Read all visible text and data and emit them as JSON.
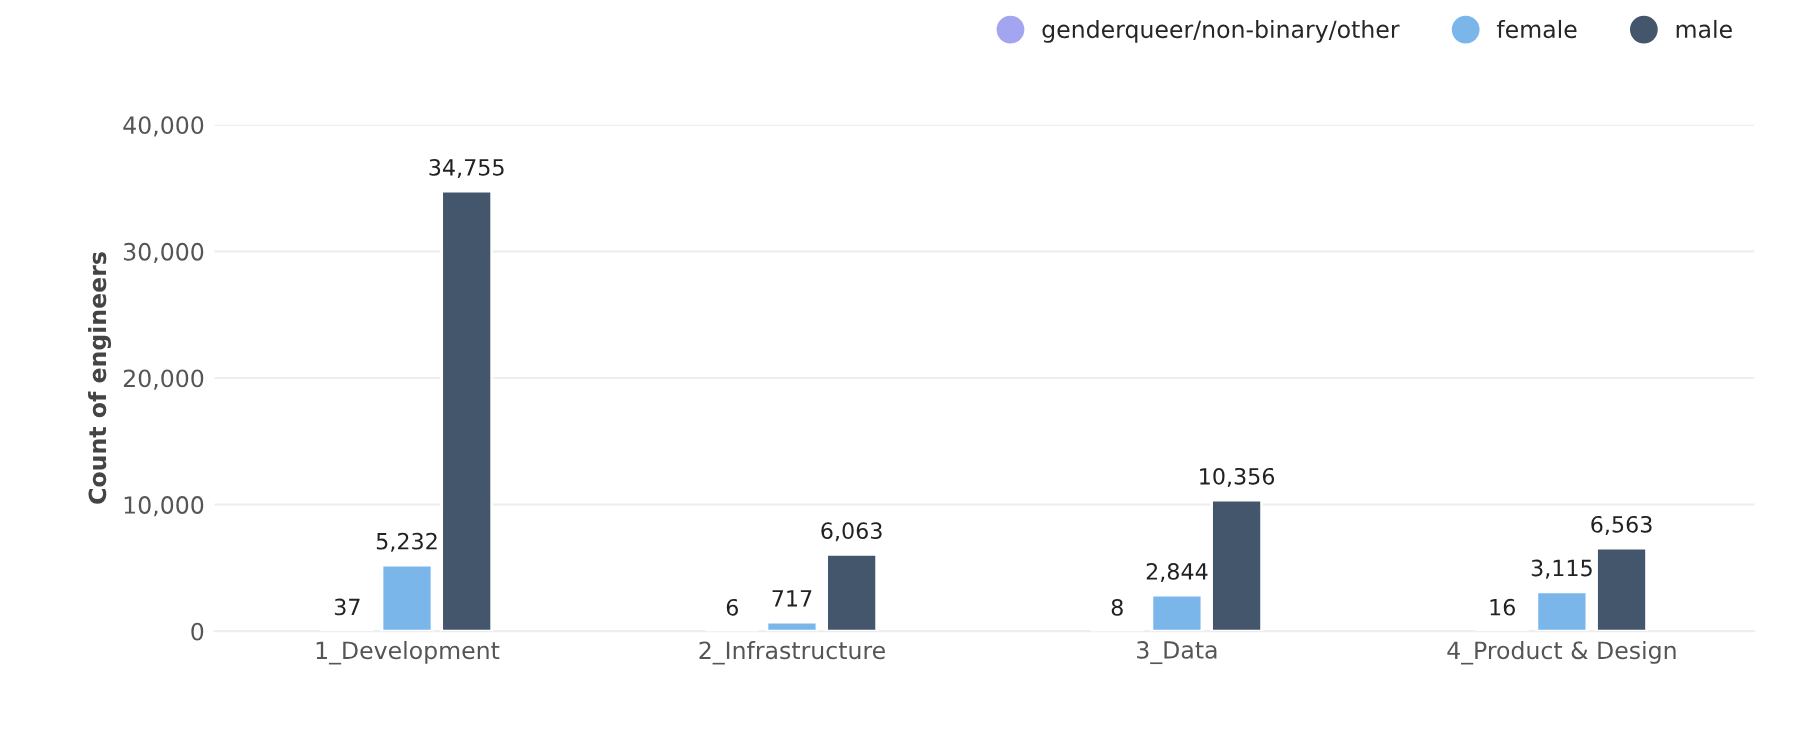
{
  "chart_data": {
    "type": "bar",
    "ylabel": "Count of engineers",
    "categories": [
      "1_Development",
      "2_Infrastructure",
      "3_Data",
      "4_Product & Design"
    ],
    "series": [
      {
        "name": "genderqueer/non-binary/other",
        "color": "#a3a5f0",
        "values": [
          37,
          6,
          8,
          16
        ],
        "value_labels": [
          "37",
          "6",
          "8",
          "16"
        ]
      },
      {
        "name": "female",
        "color": "#7ab6ea",
        "values": [
          5232,
          717,
          2844,
          3115
        ],
        "value_labels": [
          "5,232",
          "717",
          "2,844",
          "3,115"
        ]
      },
      {
        "name": "male",
        "color": "#44566c",
        "values": [
          34755,
          6063,
          10356,
          6563
        ],
        "value_labels": [
          "34,755",
          "6,063",
          "10,356",
          "6,563"
        ]
      }
    ],
    "ylim": [
      0,
      40000
    ],
    "yticks": [
      {
        "value": 0,
        "label": "0"
      },
      {
        "value": 10000,
        "label": "10,000"
      },
      {
        "value": 20000,
        "label": "20,000"
      },
      {
        "value": 30000,
        "label": "30,000"
      },
      {
        "value": 40000,
        "label": "40,000"
      }
    ],
    "grid": "y",
    "legend": "top right"
  }
}
